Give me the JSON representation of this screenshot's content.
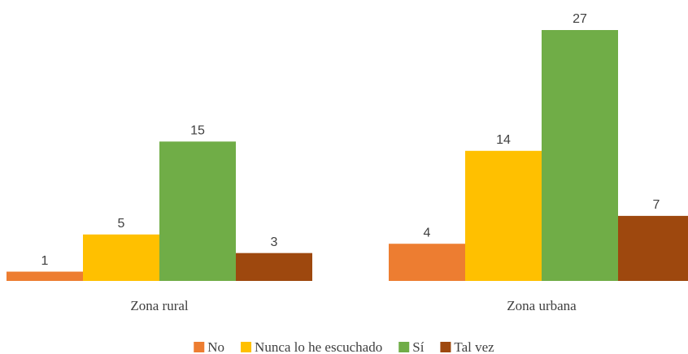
{
  "chart_data": {
    "type": "bar",
    "categories": [
      "Zona rural",
      "Zona urbana"
    ],
    "series": [
      {
        "name": "No",
        "color": "#ED7D31",
        "values": [
          1,
          4
        ]
      },
      {
        "name": "Nunca lo he escuchado",
        "color": "#FFC000",
        "values": [
          5,
          14
        ]
      },
      {
        "name": "Sí",
        "color": "#70AD47",
        "values": [
          15,
          27
        ]
      },
      {
        "name": "Tal vez",
        "color": "#9E480E",
        "values": [
          3,
          7
        ]
      }
    ],
    "legend": "bottom"
  }
}
